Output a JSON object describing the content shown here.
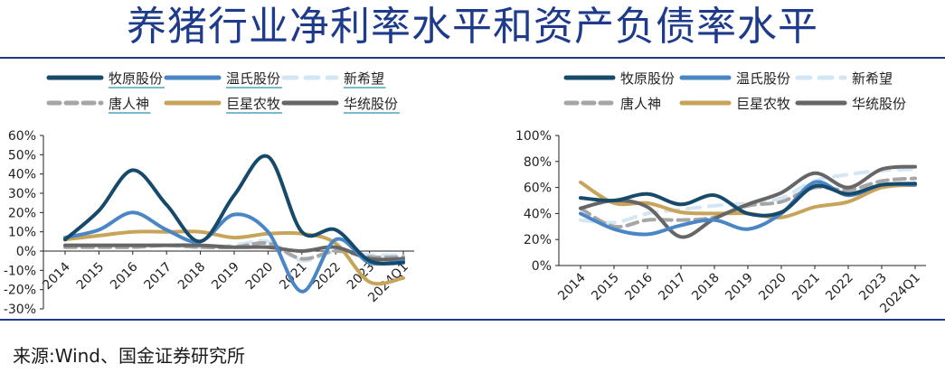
{
  "title": "养猪行业净利率水平和资产负债率水平",
  "source": "来源:Wind、国金证券研究所",
  "series_colors": {
    "牧原股份": "#17496a",
    "温氏股份": "#4a86c5",
    "新希望": "#d3e6f4",
    "唐人神": "#a6a6a6",
    "巨星农牧": "#c8a45a",
    "华统股份": "#666666"
  },
  "chart_data": [
    {
      "type": "line",
      "title": "",
      "categories": [
        "2014",
        "2015",
        "2016",
        "2017",
        "2018",
        "2019",
        "2020",
        "2021",
        "2022",
        "2023",
        "2024Q1"
      ],
      "ylim": [
        -30,
        60
      ],
      "yticks": [
        "60%",
        "50%",
        "40%",
        "30%",
        "20%",
        "10%",
        "0%",
        "-10%",
        "-20%",
        "-30%"
      ],
      "legend": [
        "牧原股份",
        "温氏股份",
        "新希望",
        "唐人神",
        "巨星农牧",
        "华统股份"
      ],
      "series": [
        {
          "name": "牧原股份",
          "values": [
            6,
            21,
            42,
            24,
            5,
            29,
            49,
            10,
            11,
            -5,
            -6
          ]
        },
        {
          "name": "温氏股份",
          "values": [
            7,
            11,
            20,
            11,
            5,
            19,
            10,
            -21,
            6,
            -6,
            -5
          ]
        },
        {
          "name": "新希望",
          "values": [
            3,
            3,
            3,
            3,
            2,
            3,
            5,
            -5,
            0,
            -2,
            -2
          ]
        },
        {
          "name": "唐人神",
          "values": [
            2,
            2,
            2,
            3,
            2,
            2,
            4,
            -4,
            0,
            -3,
            -3
          ]
        },
        {
          "name": "巨星农牧",
          "values": [
            6,
            8,
            10,
            10,
            10,
            7,
            9,
            9,
            4,
            -16,
            -14
          ]
        },
        {
          "name": "华统股份",
          "values": [
            3,
            3,
            3,
            3,
            3,
            2,
            2,
            0,
            2,
            -4,
            -4
          ]
        }
      ]
    },
    {
      "type": "line",
      "title": "",
      "categories": [
        "2014",
        "2015",
        "2016",
        "2017",
        "2018",
        "2019",
        "2020",
        "2021",
        "2022",
        "2023",
        "2024Q1"
      ],
      "ylim": [
        0,
        100
      ],
      "yticks": [
        "100%",
        "80%",
        "60%",
        "40%",
        "20%",
        "0%"
      ],
      "legend": [
        "牧原股份",
        "温氏股份",
        "新希望",
        "唐人神",
        "巨星农牧",
        "华统股份"
      ],
      "series": [
        {
          "name": "牧原股份",
          "values": [
            52,
            50,
            55,
            47,
            54,
            40,
            41,
            61,
            55,
            62,
            63
          ]
        },
        {
          "name": "温氏股份",
          "values": [
            40,
            28,
            24,
            31,
            35,
            28,
            40,
            64,
            54,
            62,
            62
          ]
        },
        {
          "name": "新希望",
          "values": [
            35,
            33,
            40,
            43,
            46,
            48,
            52,
            65,
            70,
            73,
            74
          ]
        },
        {
          "name": "唐人神",
          "values": [
            44,
            30,
            35,
            35,
            37,
            46,
            49,
            60,
            58,
            65,
            67
          ]
        },
        {
          "name": "巨星农牧",
          "values": [
            64,
            48,
            48,
            41,
            40,
            40,
            37,
            45,
            49,
            60,
            62
          ]
        },
        {
          "name": "华统股份",
          "values": [
            44,
            50,
            45,
            22,
            36,
            47,
            56,
            71,
            60,
            74,
            76
          ]
        }
      ]
    }
  ]
}
